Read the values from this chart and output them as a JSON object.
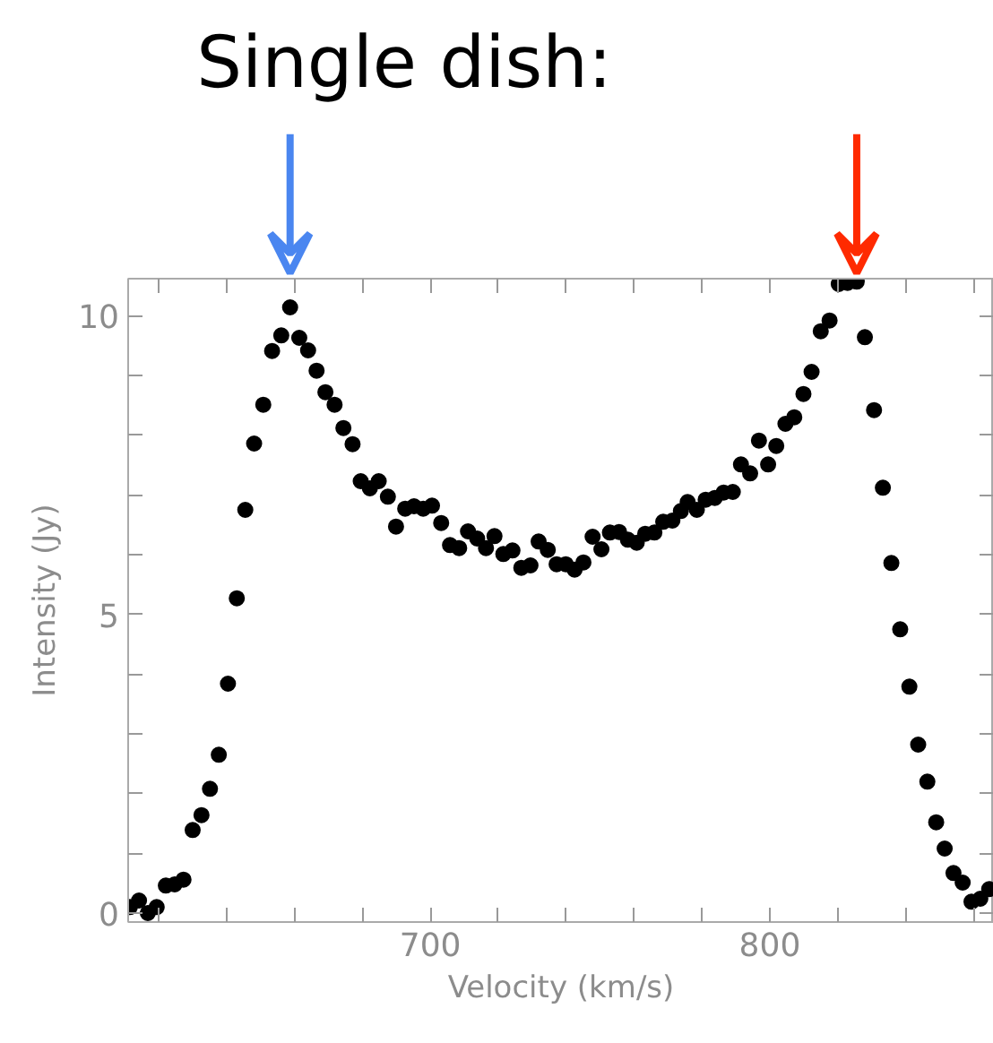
{
  "chart_data": {
    "type": "scatter",
    "title": "Single dish:",
    "xlabel": "Velocity (km/s)",
    "ylabel": "Intensity (Jy)",
    "marker": "circle",
    "grid": false,
    "xlim": [
      611,
      866
    ],
    "ylim": [
      -0.15,
      10.62
    ],
    "xticks": [
      {
        "value": 620,
        "label": null
      },
      {
        "value": 640,
        "label": null
      },
      {
        "value": 660,
        "label": null
      },
      {
        "value": 680,
        "label": null
      },
      700,
      {
        "value": 720,
        "label": null
      },
      {
        "value": 740,
        "label": null
      },
      {
        "value": 760,
        "label": null
      },
      {
        "value": 780,
        "label": null
      },
      800,
      {
        "value": 820,
        "label": null
      },
      {
        "value": 840,
        "label": null
      },
      {
        "value": 860,
        "label": null
      }
    ],
    "yticks": [
      0,
      {
        "value": 1,
        "label": null
      },
      {
        "value": 2,
        "label": null
      },
      {
        "value": 3,
        "label": null
      },
      {
        "value": 4,
        "label": null
      },
      5,
      {
        "value": 6,
        "label": null
      },
      {
        "value": 7,
        "label": null
      },
      {
        "value": 8,
        "label": null
      },
      {
        "value": 9,
        "label": null
      },
      10
    ],
    "series": [
      {
        "color": "#000000",
        "x": [
          611.5,
          614.2,
          616.8,
          619.4,
          622.1,
          624.7,
          627.3,
          630.0,
          632.6,
          635.1,
          637.7,
          640.4,
          643.0,
          645.5,
          648.1,
          650.8,
          653.4,
          656.1,
          658.7,
          661.4,
          664.0,
          666.5,
          669.1,
          671.8,
          674.4,
          677.1,
          679.5,
          682.2,
          684.8,
          687.5,
          689.9,
          692.6,
          695.2,
          697.9,
          700.5,
          703.2,
          705.8,
          708.5,
          711.1,
          713.8,
          716.4,
          718.9,
          721.5,
          724.2,
          726.8,
          729.5,
          731.9,
          734.6,
          737.2,
          739.9,
          742.5,
          745.1,
          747.8,
          750.4,
          752.9,
          755.6,
          758.2,
          760.8,
          763.3,
          766.0,
          768.6,
          771.3,
          773.8,
          775.8,
          778.5,
          781.1,
          783.8,
          786.4,
          789.1,
          791.5,
          794.2,
          796.8,
          799.5,
          801.9,
          804.6,
          807.2,
          809.9,
          812.3,
          815.0,
          817.6,
          820.3,
          822.9,
          825.6,
          828.0,
          830.7,
          833.3,
          835.8,
          838.4,
          841.1,
          843.7,
          846.4,
          849.0,
          851.5,
          854.1,
          856.8,
          859.4,
          862.0,
          864.6
        ],
        "values": [
          0.1,
          0.21,
          0.0,
          0.1,
          0.46,
          0.48,
          0.56,
          1.39,
          1.64,
          2.08,
          2.65,
          3.84,
          5.27,
          6.75,
          7.86,
          8.51,
          9.41,
          9.67,
          10.14,
          9.63,
          9.42,
          9.08,
          8.72,
          8.51,
          8.12,
          7.85,
          7.23,
          7.11,
          7.23,
          6.97,
          6.47,
          6.77,
          6.81,
          6.77,
          6.82,
          6.53,
          6.16,
          6.11,
          6.39,
          6.27,
          6.11,
          6.31,
          6.01,
          6.07,
          5.78,
          5.82,
          6.22,
          6.08,
          5.84,
          5.84,
          5.75,
          5.87,
          6.3,
          6.09,
          6.37,
          6.38,
          6.25,
          6.2,
          6.35,
          6.37,
          6.55,
          6.57,
          6.73,
          6.88,
          6.75,
          6.92,
          6.95,
          7.04,
          7.05,
          7.51,
          7.36,
          7.91,
          7.51,
          7.82,
          8.19,
          8.3,
          8.69,
          9.06,
          9.74,
          9.92,
          10.53,
          10.55,
          10.57,
          9.64,
          8.42,
          7.12,
          5.86,
          4.75,
          3.79,
          2.82,
          2.2,
          1.52,
          1.08,
          0.67,
          0.51,
          0.19,
          0.24,
          0.4
        ]
      }
    ]
  }
}
